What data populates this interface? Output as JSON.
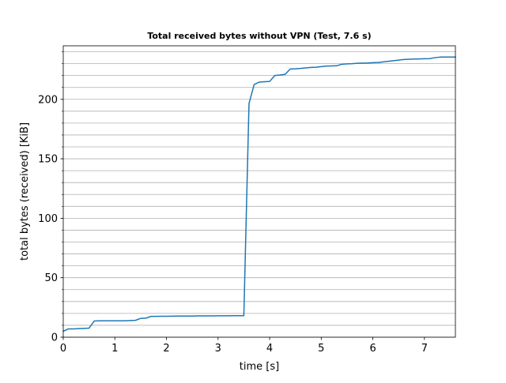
{
  "chart_data": {
    "type": "line",
    "title": "Total received bytes without VPN (Test, 7.6 s)",
    "xlabel": "time [s]",
    "ylabel": "total bytes (received) [KiB]",
    "xlim": [
      0,
      7.6
    ],
    "ylim": [
      0,
      245
    ],
    "xticks": [
      0,
      1,
      2,
      3,
      4,
      5,
      6,
      7
    ],
    "yticks": [
      0,
      50,
      100,
      150,
      200
    ],
    "y_minor_step": 10,
    "grid": {
      "y_major": true,
      "y_minor": true,
      "x": false
    },
    "legend": "none",
    "series": [
      {
        "color": "#1f77b4",
        "x": [
          0.0,
          0.1,
          0.2,
          0.3,
          0.4,
          0.5,
          0.6,
          0.7,
          0.8,
          0.9,
          1.0,
          1.1,
          1.2,
          1.3,
          1.4,
          1.5,
          1.6,
          1.7,
          1.8,
          1.9,
          2.0,
          2.1,
          2.2,
          2.3,
          2.4,
          2.5,
          2.6,
          2.7,
          2.8,
          2.9,
          3.0,
          3.1,
          3.2,
          3.3,
          3.4,
          3.5,
          3.6,
          3.7,
          3.8,
          3.9,
          4.0,
          4.1,
          4.2,
          4.3,
          4.4,
          4.5,
          4.6,
          4.7,
          4.8,
          4.9,
          5.0,
          5.1,
          5.2,
          5.3,
          5.4,
          5.5,
          5.6,
          5.7,
          5.8,
          5.9,
          6.0,
          6.1,
          6.2,
          6.3,
          6.4,
          6.5,
          6.6,
          6.7,
          6.8,
          6.9,
          7.0,
          7.1,
          7.2,
          7.3,
          7.4,
          7.5,
          7.6
        ],
        "y": [
          5.0,
          7.0,
          7.0,
          7.2,
          7.4,
          7.6,
          13.6,
          13.8,
          13.8,
          13.8,
          13.8,
          13.8,
          13.8,
          14.0,
          14.2,
          15.8,
          16.0,
          17.5,
          17.5,
          17.6,
          17.6,
          17.7,
          17.8,
          17.8,
          17.8,
          17.8,
          17.9,
          17.9,
          17.9,
          17.9,
          18.0,
          18.0,
          18.0,
          18.1,
          18.1,
          18.1,
          196.5,
          212.5,
          214.5,
          214.8,
          215.0,
          220.0,
          220.4,
          221.0,
          225.5,
          225.7,
          226.0,
          226.4,
          226.8,
          227.0,
          227.5,
          228.0,
          228.1,
          228.2,
          229.5,
          229.8,
          230.0,
          230.3,
          230.5,
          230.6,
          230.8,
          231.0,
          231.5,
          232.0,
          232.5,
          233.0,
          233.5,
          233.7,
          233.9,
          234.0,
          234.1,
          234.2,
          235.0,
          235.5,
          235.5,
          235.5,
          235.5
        ]
      }
    ]
  }
}
